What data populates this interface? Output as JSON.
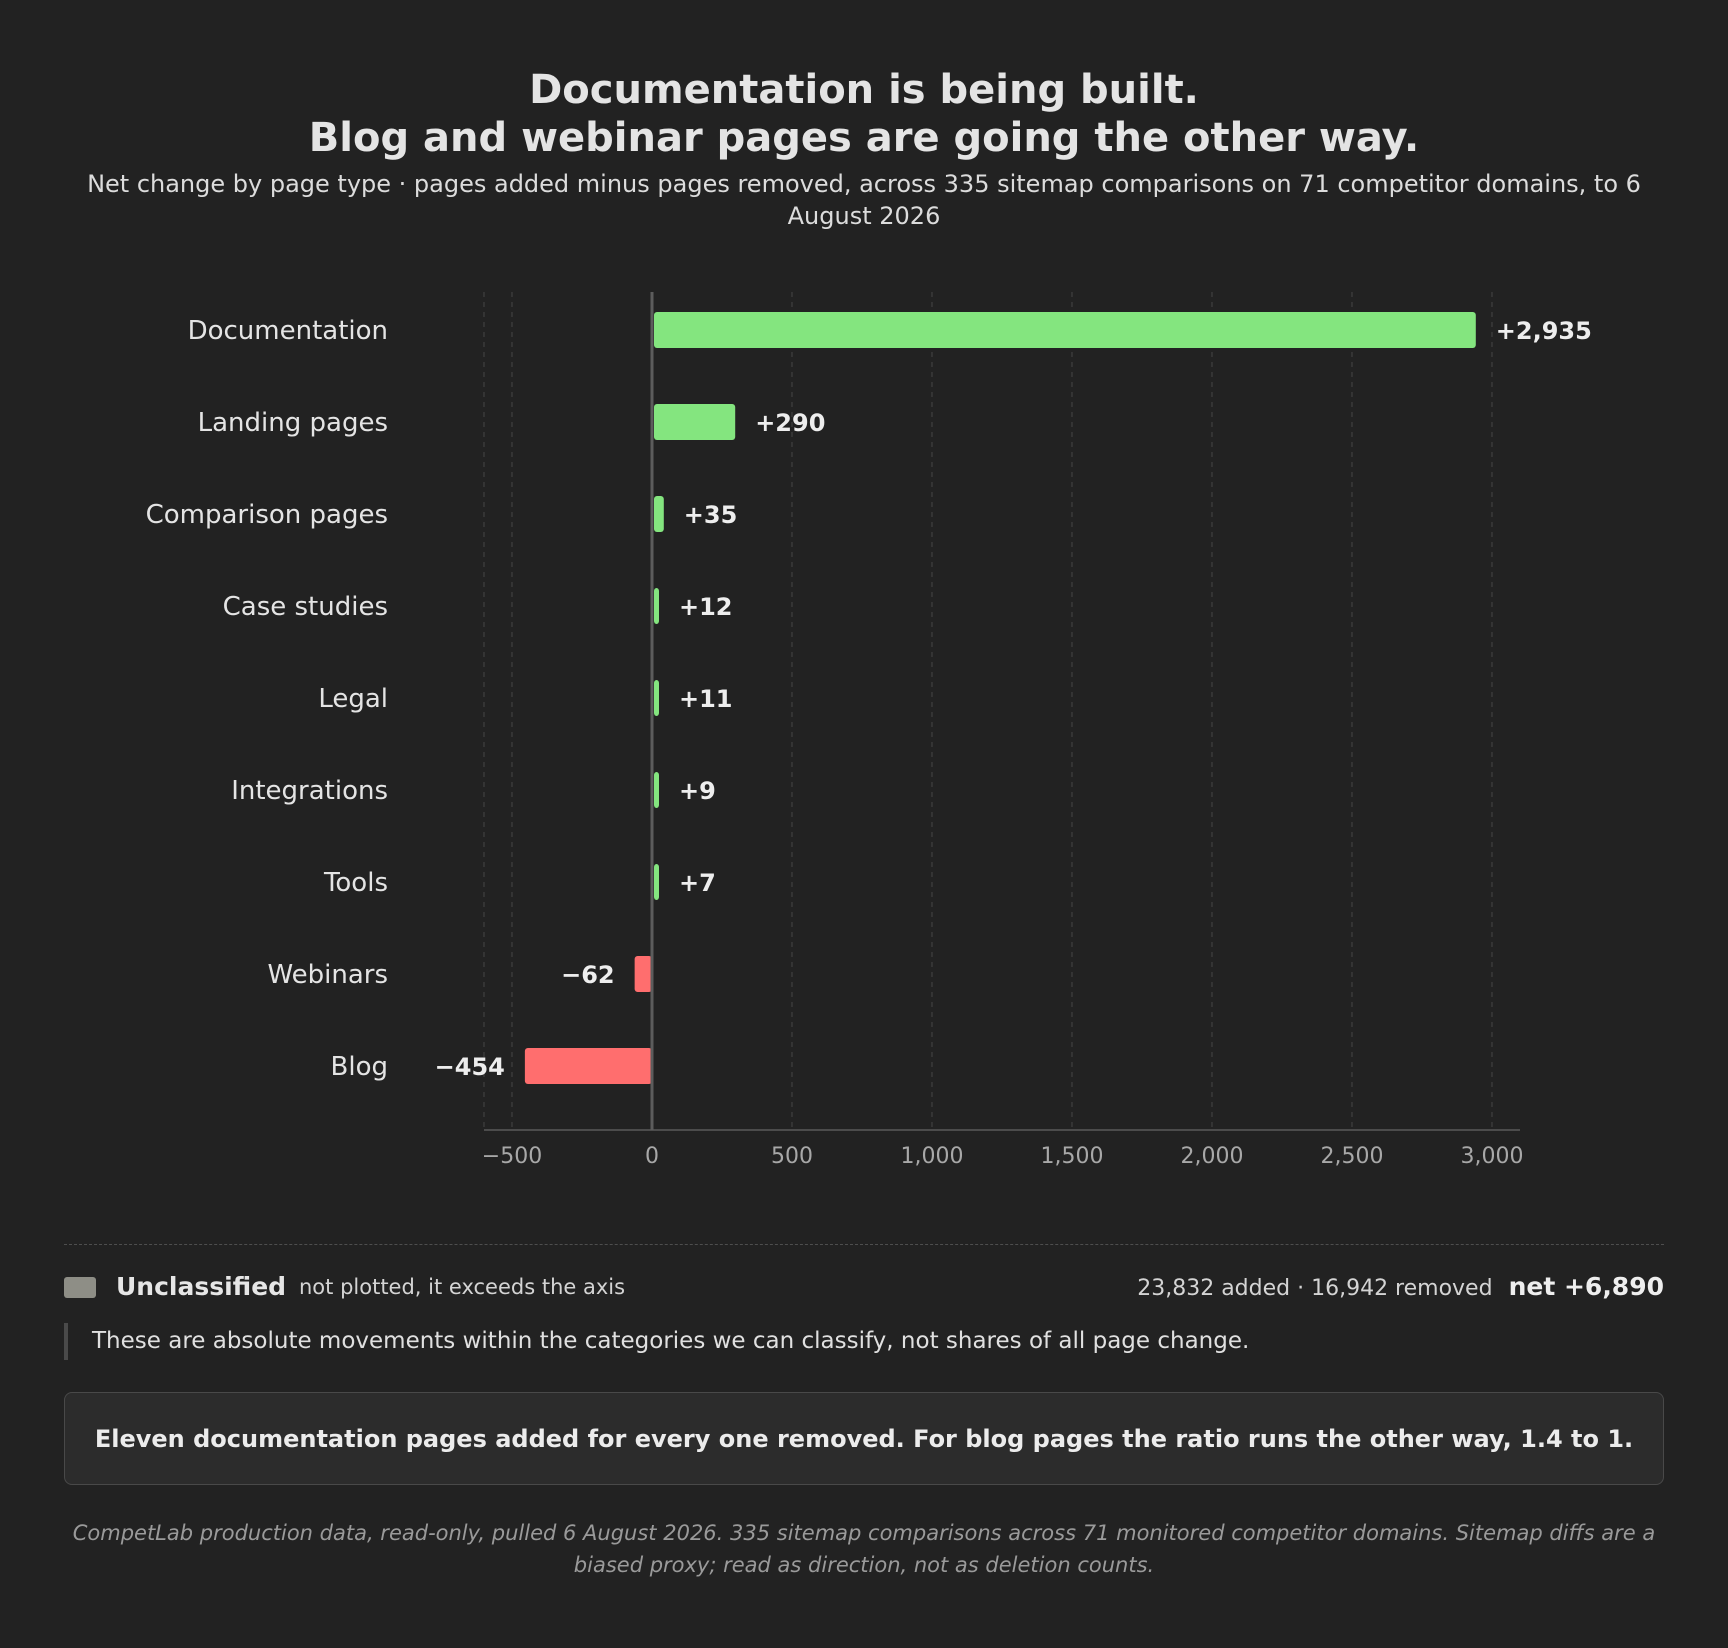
{
  "title_line1": "Documentation is being built.",
  "title_line2": "Blog and webinar pages are going the other way.",
  "subtitle": "Net change by page type · pages added minus pages removed, across 335 sitemap comparisons on 71 competitor domains, to 6 August 2026",
  "chart_data": {
    "type": "bar",
    "orientation": "horizontal",
    "categories": [
      "Documentation",
      "Landing pages",
      "Comparison pages",
      "Case studies",
      "Legal",
      "Integrations",
      "Tools",
      "Webinars",
      "Blog"
    ],
    "values": [
      2935,
      290,
      35,
      12,
      11,
      9,
      7,
      -62,
      -454
    ],
    "value_labels": [
      "+2,935",
      "+290",
      "+35",
      "+12",
      "+11",
      "+9",
      "+7",
      "−62",
      "−454"
    ],
    "xlim": [
      -600,
      3100
    ],
    "xticks": [
      -500,
      0,
      500,
      1000,
      1500,
      2000,
      2500,
      3000
    ],
    "xtick_labels": [
      "−500",
      "0",
      "500",
      "1,000",
      "1,500",
      "2,000",
      "2,500",
      "3,000"
    ],
    "grid": "vertical dashed",
    "positive_color": "#84e57f",
    "negative_color": "#ff6e6e"
  },
  "legend": {
    "swatch_color": "#8e8e86",
    "name": "Unclassified",
    "note": "not plotted, it exceeds the axis",
    "totals": "23,832 added · 16,942 removed",
    "net": "net +6,890"
  },
  "caveat": "These are absolute movements within the categories we can classify, not shares of all page change.",
  "callout": "Eleven documentation pages added for every one removed. For blog pages the ratio runs the other way, 1.4 to 1.",
  "footnote": "CompetLab production data, read-only, pulled 6 August 2026. 335 sitemap comparisons across 71 monitored competitor domains. Sitemap diffs are a biased proxy; read as direction, not as deletion counts."
}
